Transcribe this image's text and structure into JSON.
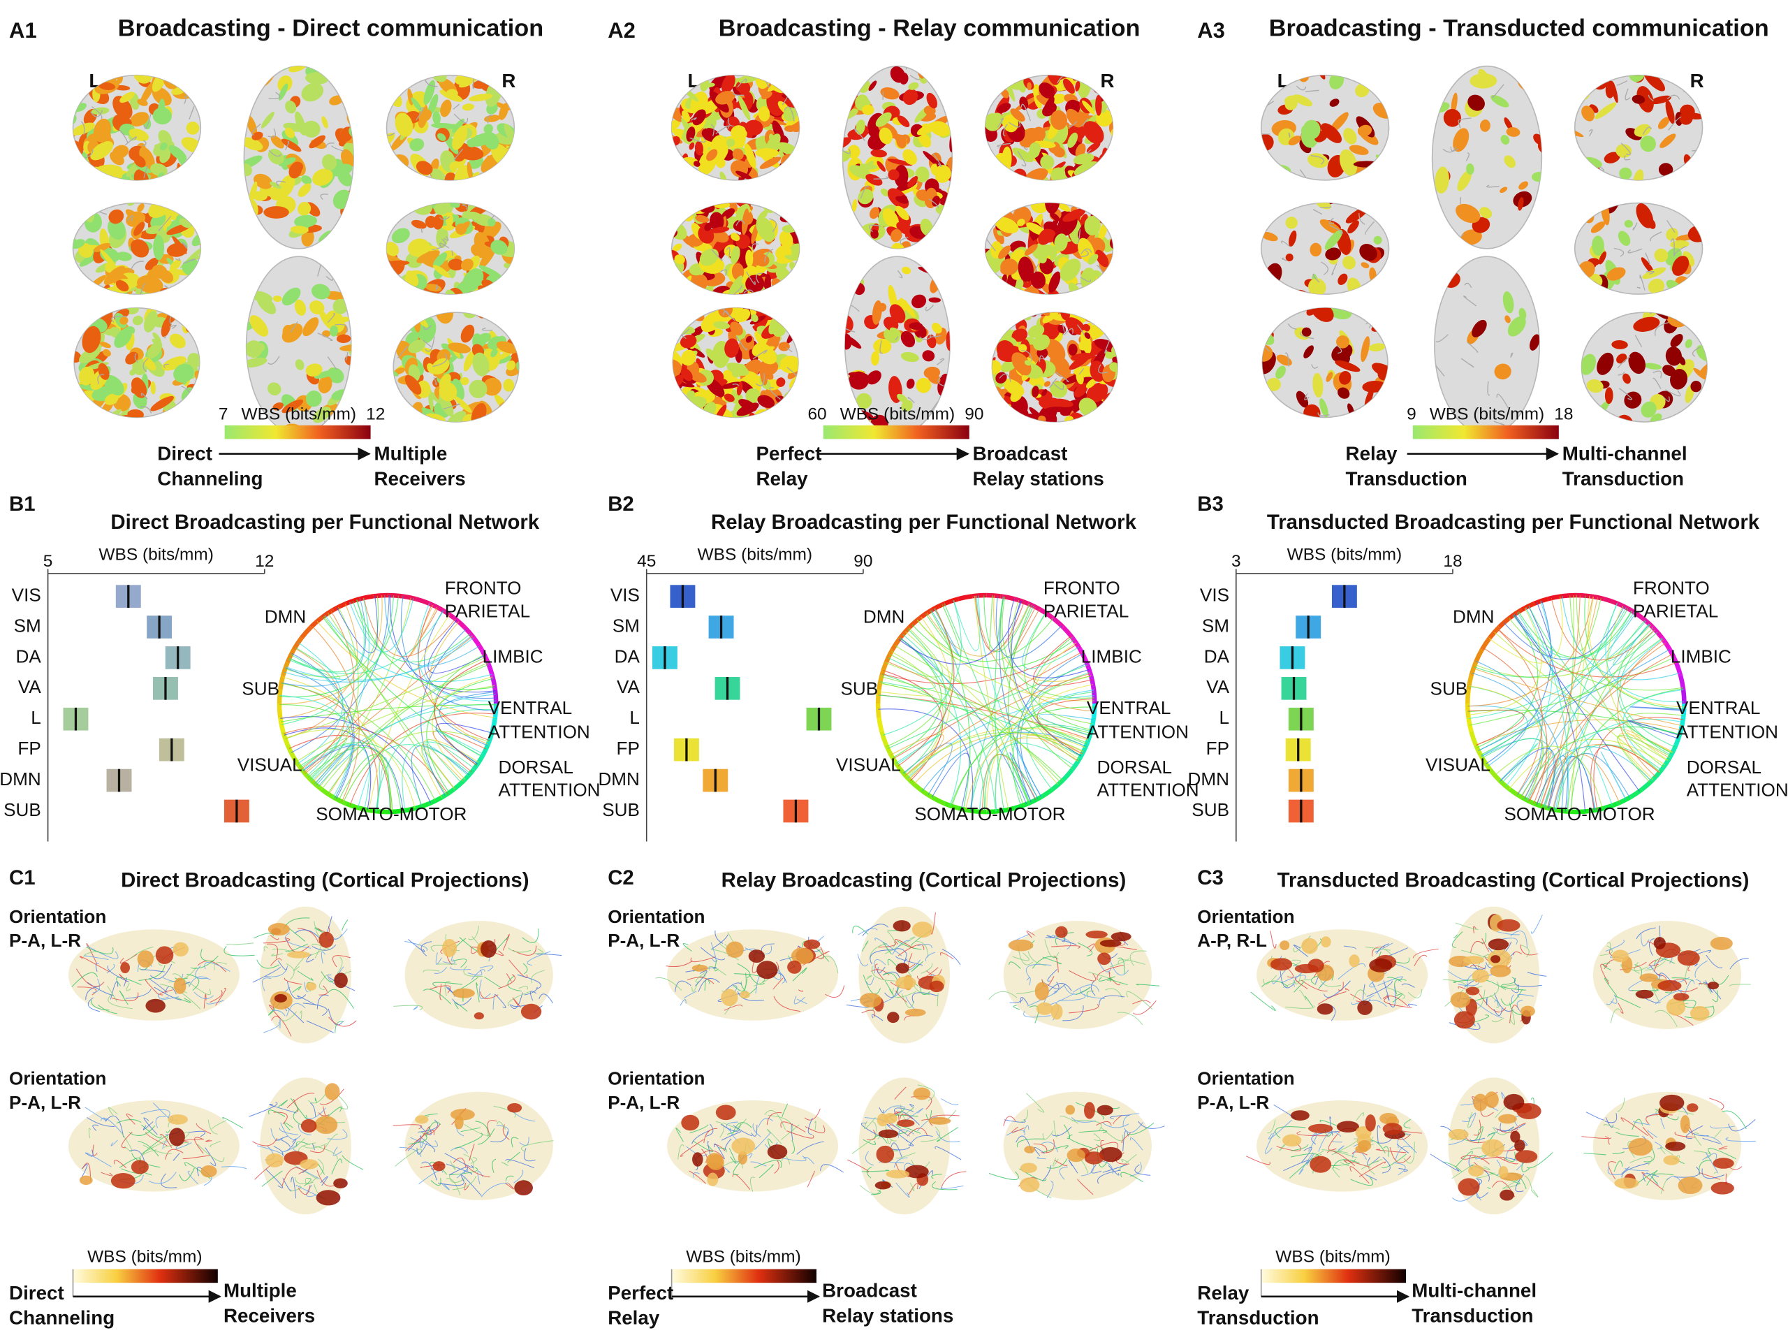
{
  "columns": [
    {
      "A": {
        "label": "A1",
        "title": "Broadcasting - Direct communication",
        "left": "L",
        "right": "R",
        "colorbar": {
          "min": 7,
          "max": 12,
          "label": "WBS (bits/mm)"
        },
        "from": [
          "Direct",
          "Channeling"
        ],
        "to": [
          "Multiple",
          "Receivers"
        ]
      },
      "B": {
        "label": "B1",
        "title": "Direct Broadcasting per Functional Network",
        "axis_label": "WBS (bits/mm)",
        "xlim": [
          5,
          12
        ],
        "xticks": [
          5,
          12
        ],
        "categories": [
          "VIS",
          "SM",
          "DA",
          "VA",
          "L",
          "FP",
          "DMN",
          "SUB"
        ],
        "values": [
          7.6,
          8.6,
          9.2,
          8.8,
          5.9,
          9.0,
          7.3,
          11.1
        ],
        "colors": [
          "#8aa0c8",
          "#7a9cc0",
          "#8ab0b8",
          "#8ab8a8",
          "#9ac890",
          "#b8b890",
          "#b0a898",
          "#e05020"
        ],
        "circle_labels": [
          [
            "DMN"
          ],
          [
            "FRONTO",
            "PARIETAL"
          ],
          [
            "LIMBIC"
          ],
          [
            "SUB"
          ],
          [
            "VENTRAL",
            "ATTENTION"
          ],
          [
            "VISUAL"
          ],
          [
            "DORSAL",
            "ATTENTION"
          ],
          [
            "SOMATO-MOTOR"
          ]
        ]
      },
      "C": {
        "label": "C1",
        "title": "Direct Broadcasting (Cortical Projections)",
        "orientations": [
          [
            "Orientation",
            "P-A, L-R"
          ],
          [
            "Orientation",
            "P-A, L-R"
          ]
        ],
        "colorbar_label": "WBS (bits/mm)",
        "from": [
          "Direct",
          "Channeling"
        ],
        "to": [
          "Multiple",
          "Receivers"
        ]
      }
    },
    {
      "A": {
        "label": "A2",
        "title": "Broadcasting - Relay communication",
        "left": "L",
        "right": "R",
        "colorbar": {
          "min": 60,
          "max": 90,
          "label": "WBS (bits/mm)"
        },
        "from": [
          "Perfect",
          "Relay"
        ],
        "to": [
          "Broadcast",
          "Relay stations"
        ]
      },
      "B": {
        "label": "B2",
        "title": "Relay Broadcasting per Functional Network",
        "axis_label": "WBS (bits/mm)",
        "xlim": [
          45,
          90
        ],
        "xticks": [
          45,
          90
        ],
        "categories": [
          "VIS",
          "SM",
          "DA",
          "VA",
          "L",
          "FP",
          "DMN",
          "SUB"
        ],
        "values": [
          52.5,
          60.5,
          48.8,
          61.8,
          80.8,
          53.3,
          59.3,
          76.0
        ],
        "colors": [
          "#2050c8",
          "#2a9de0",
          "#22c8e0",
          "#22d090",
          "#70d040",
          "#e8e020",
          "#f0a020",
          "#f05020"
        ],
        "circle_labels": [
          [
            "DMN"
          ],
          [
            "FRONTO",
            "PARIETAL"
          ],
          [
            "LIMBIC"
          ],
          [
            "SUB"
          ],
          [
            "VENTRAL",
            "ATTENTION"
          ],
          [
            "VISUAL"
          ],
          [
            "DORSAL",
            "ATTENTION"
          ],
          [
            "SOMATO-MOTOR"
          ]
        ]
      },
      "C": {
        "label": "C2",
        "title": "Relay Broadcasting (Cortical Projections)",
        "orientations": [
          [
            "Orientation",
            "P-A, L-R"
          ],
          [
            "Orientation",
            "P-A, L-R"
          ]
        ],
        "colorbar_label": "WBS (bits/mm)",
        "from": [
          "Perfect",
          "Relay"
        ],
        "to": [
          "Broadcast",
          "Relay stations"
        ]
      }
    },
    {
      "A": {
        "label": "A3",
        "title": "Broadcasting - Transducted communication",
        "left": "L",
        "right": "R",
        "colorbar": {
          "min": 9,
          "max": 18,
          "label": "WBS (bits/mm)"
        },
        "from": [
          "Relay",
          "Transduction"
        ],
        "to": [
          "Multi-channel",
          "Transduction"
        ]
      },
      "B": {
        "label": "B3",
        "title": "Transducted Broadcasting per Functional Network",
        "axis_label": "WBS (bits/mm)",
        "xlim": [
          3,
          18
        ],
        "xticks": [
          3,
          18
        ],
        "categories": [
          "VIS",
          "SM",
          "DA",
          "VA",
          "L",
          "FP",
          "DMN",
          "SUB"
        ],
        "values": [
          10.5,
          8.0,
          6.9,
          7.0,
          7.5,
          7.3,
          7.5,
          7.5
        ],
        "colors": [
          "#2050c8",
          "#2a9de0",
          "#22c8e0",
          "#22d090",
          "#70d040",
          "#e8e020",
          "#f0a020",
          "#f05020"
        ],
        "circle_labels": [
          [
            "DMN"
          ],
          [
            "FRONTO",
            "PARIETAL"
          ],
          [
            "LIMBIC"
          ],
          [
            "SUB"
          ],
          [
            "VENTRAL",
            "ATTENTION"
          ],
          [
            "VISUAL"
          ],
          [
            "DORSAL",
            "ATTENTION"
          ],
          [
            "SOMATO-MOTOR"
          ]
        ]
      },
      "C": {
        "label": "C3",
        "title": "Transducted Broadcasting (Cortical Projections)",
        "orientations": [
          [
            "Orientation",
            "A-P, R-L"
          ],
          [
            "Orientation",
            "P-A, L-R"
          ]
        ],
        "colorbar_label": "WBS (bits/mm)",
        "from": [
          "Relay",
          "Transduction"
        ],
        "to": [
          "Multi-channel",
          "Transduction"
        ]
      }
    }
  ]
}
